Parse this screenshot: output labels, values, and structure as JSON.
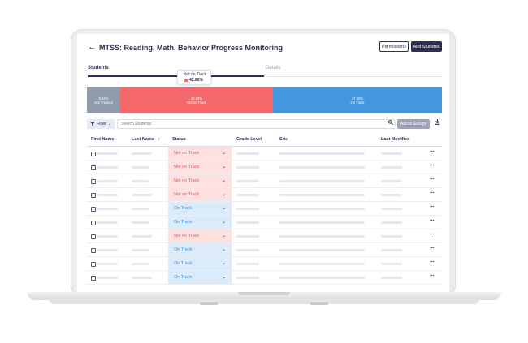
{
  "header": {
    "title": "MTSS: Reading, Math, Behavior Progress Monitoring",
    "permissions_label": "Permissions",
    "add_students_label": "Add Students"
  },
  "tabs": [
    {
      "label": "Students",
      "active": true
    },
    {
      "label": "Details",
      "active": false
    }
  ],
  "tooltip": {
    "label": "Not on Track",
    "value": "42.86%"
  },
  "progress": {
    "segments": [
      {
        "percent": "9.52%",
        "label": "Not Tracked",
        "fraction": 0.0952,
        "color": "#8f9aab"
      },
      {
        "percent": "42.86%",
        "label": "Not on Track",
        "fraction": 0.4286,
        "color": "#f4676b"
      },
      {
        "percent": "47.62%",
        "label": "On Track",
        "fraction": 0.4762,
        "color": "#4497de"
      }
    ]
  },
  "toolbar": {
    "filter_label": "Filter",
    "search_placeholder": "Search Students",
    "add_to_groups_label": "Add to Groups"
  },
  "table": {
    "columns": [
      "First Name",
      "Last Name",
      "Status",
      "Grade Level",
      "Site",
      "Last Modified"
    ],
    "sort_indicator": "↑",
    "rows": [
      {
        "status": "Not on Track"
      },
      {
        "status": "Not on Track"
      },
      {
        "status": "Not on Track"
      },
      {
        "status": "Not on Track"
      },
      {
        "status": "On Track"
      },
      {
        "status": "On Track"
      },
      {
        "status": "Not on Track"
      },
      {
        "status": "On Track"
      },
      {
        "status": "On Track"
      },
      {
        "status": "On Track"
      }
    ]
  },
  "colors": {
    "brand": "#2d2f4e",
    "not_on_track_bg": "#fde1e1",
    "not_on_track_text": "#e0545a",
    "on_track_bg": "#dcebfa",
    "on_track_text": "#3b8bd4"
  }
}
